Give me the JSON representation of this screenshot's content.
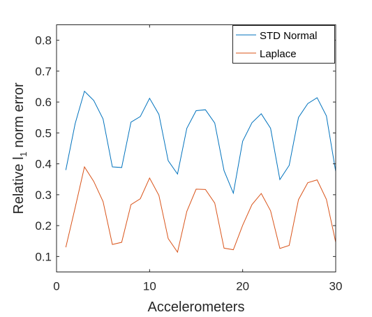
{
  "chart_data": {
    "type": "line",
    "xlabel": "Accelerometers",
    "ylabel_prefix": "Relative l",
    "ylabel_subscript": "1",
    "ylabel_suffix": " norm error",
    "xlim": [
      0,
      30
    ],
    "ylim": [
      0.05,
      0.85
    ],
    "xticks": [
      0,
      10,
      20,
      30
    ],
    "xtick_labels": [
      "0",
      "10",
      "20",
      "30"
    ],
    "yticks": [
      0.1,
      0.2,
      0.3,
      0.4,
      0.5,
      0.6,
      0.7,
      0.8
    ],
    "ytick_labels": [
      "0.1",
      "0.2",
      "0.3",
      "0.4",
      "0.5",
      "0.6",
      "0.7",
      "0.8"
    ],
    "grid": false,
    "legend_position": "top-right",
    "x": [
      1,
      2,
      3,
      4,
      5,
      6,
      7,
      8,
      9,
      10,
      11,
      12,
      13,
      14,
      15,
      16,
      17,
      18,
      19,
      20,
      21,
      22,
      23,
      24,
      25,
      26,
      27,
      28,
      29,
      30
    ],
    "series": [
      {
        "name": "STD Normal",
        "color": "#0072BD",
        "values": [
          0.38,
          0.53,
          0.635,
          0.605,
          0.545,
          0.39,
          0.388,
          0.535,
          0.553,
          0.612,
          0.56,
          0.41,
          0.367,
          0.515,
          0.572,
          0.575,
          0.532,
          0.378,
          0.305,
          0.473,
          0.533,
          0.562,
          0.515,
          0.349,
          0.395,
          0.55,
          0.595,
          0.614,
          0.555,
          0.375
        ]
      },
      {
        "name": "Laplace",
        "color": "#D95319",
        "values": [
          0.13,
          0.258,
          0.39,
          0.343,
          0.278,
          0.139,
          0.146,
          0.268,
          0.287,
          0.354,
          0.298,
          0.158,
          0.114,
          0.246,
          0.318,
          0.317,
          0.273,
          0.127,
          0.122,
          0.201,
          0.268,
          0.304,
          0.248,
          0.126,
          0.136,
          0.284,
          0.339,
          0.348,
          0.285,
          0.146
        ]
      }
    ]
  }
}
